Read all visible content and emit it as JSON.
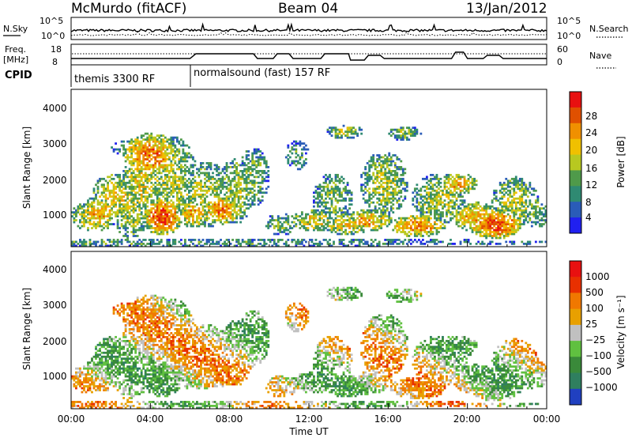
{
  "header": {
    "station": "McMurdo (fitACF)",
    "beam": "Beam 04",
    "date": "13/Jan/2012"
  },
  "summary_panels": {
    "nsky_label": "N.Sky",
    "nsky_ticks": [
      "10^5",
      "10^0"
    ],
    "nsearch_label": "N.Search",
    "nsearch_ticks": [
      "10^5",
      "10^0"
    ],
    "freq_label": "Freq.",
    "freq_unit": "[MHz]",
    "freq_ticks": [
      "18",
      "8"
    ],
    "nave_label": "Nave",
    "nave_ticks": [
      "60",
      "0"
    ],
    "cpid_label": "CPID",
    "cpid_segments": [
      {
        "text": "themis 3300 RF",
        "start_hour": 0
      },
      {
        "text": "normalsound (fast) 157 RF",
        "start_hour": 6
      }
    ]
  },
  "chart_data": [
    {
      "type": "heatmap",
      "panel": "power",
      "ylabel": "Slant Range [km]",
      "ylim": [
        180,
        4500
      ],
      "yticks": [
        "1000",
        "2000",
        "3000",
        "4000"
      ],
      "xlim": [
        0,
        24
      ],
      "colorbar_label": "Power [dB]",
      "colorbar_ticks": [
        "4",
        "8",
        "12",
        "16",
        "20",
        "24",
        "28"
      ],
      "colors": [
        "#2020f0",
        "#2a5cb8",
        "#2f8a72",
        "#4f9a4a",
        "#b8c820",
        "#f0c000",
        "#f09000",
        "#e05000",
        "#e81010"
      ]
    },
    {
      "type": "heatmap",
      "panel": "velocity",
      "ylabel": "Slant Range [km]",
      "ylim": [
        180,
        4500
      ],
      "yticks": [
        "1000",
        "2000",
        "3000",
        "4000"
      ],
      "xlim": [
        0,
        24
      ],
      "xticks": [
        "00:00",
        "04:00",
        "08:00",
        "12:00",
        "16:00",
        "20:00",
        "00:00"
      ],
      "xlabel": "Time UT",
      "colorbar_label": "Velocity [m s⁻¹]",
      "colorbar_ticks": [
        "1000",
        "500",
        "100",
        "25",
        "−25",
        "−100",
        "−500",
        "−1000"
      ],
      "colors": [
        "#2040c0",
        "#2f7f5f",
        "#3a8a3a",
        "#60c040",
        "#c0c0c0",
        "#e8a000",
        "#f07800",
        "#e83000",
        "#e81010"
      ]
    }
  ]
}
